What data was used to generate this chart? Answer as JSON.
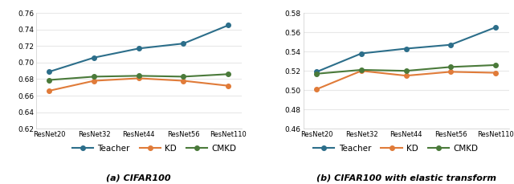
{
  "x_labels": [
    "ResNet20",
    "ResNet32",
    "ResNet44",
    "ResNet56",
    "ResNet110"
  ],
  "chart_a": {
    "title": "(a) CIFAR100",
    "teacher": [
      0.689,
      0.706,
      0.717,
      0.723,
      0.745
    ],
    "kd": [
      0.666,
      0.678,
      0.681,
      0.678,
      0.672
    ],
    "cmkd": [
      0.679,
      0.683,
      0.684,
      0.683,
      0.686
    ],
    "ylim": [
      0.62,
      0.76
    ],
    "yticks": [
      0.62,
      0.64,
      0.66,
      0.68,
      0.7,
      0.72,
      0.74,
      0.76
    ]
  },
  "chart_b": {
    "title": "(b) CIFAR100 with elastic transform",
    "teacher": [
      0.519,
      0.538,
      0.543,
      0.547,
      0.565
    ],
    "kd": [
      0.501,
      0.52,
      0.515,
      0.519,
      0.518
    ],
    "cmkd": [
      0.517,
      0.521,
      0.52,
      0.524,
      0.526
    ],
    "ylim": [
      0.46,
      0.58
    ],
    "yticks": [
      0.46,
      0.48,
      0.5,
      0.52,
      0.54,
      0.56,
      0.58
    ]
  },
  "teacher_color": "#2C6E8A",
  "kd_color": "#E07B39",
  "cmkd_color": "#4A7A3A",
  "marker": "o",
  "linewidth": 1.5,
  "markersize": 4,
  "legend_labels": [
    "Teacher",
    "KD",
    "CMKD"
  ],
  "bg_color": "#FFFFFF",
  "grid_color": "#E8E8E8"
}
